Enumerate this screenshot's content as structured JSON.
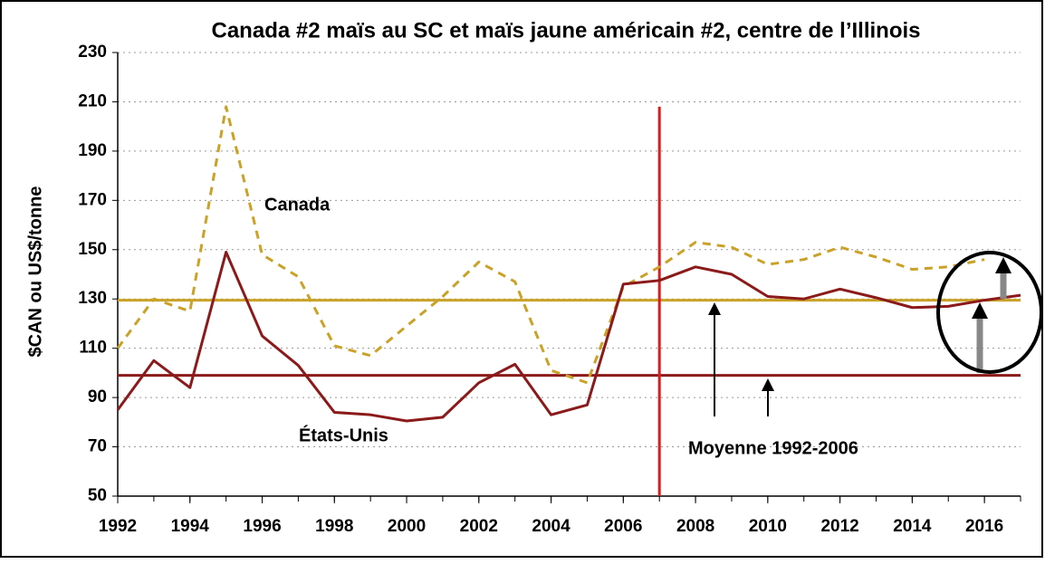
{
  "chart_data": {
    "type": "line",
    "title": "Canada #2 maïs au SC et maïs jaune américain #2, centre de l’Illinois",
    "y_label": "$CAN ou US$/tonne",
    "x": [
      1992,
      1993,
      1994,
      1995,
      1996,
      1997,
      1998,
      1999,
      2000,
      2001,
      2002,
      2003,
      2004,
      2005,
      2006,
      2007,
      2008,
      2009,
      2010,
      2011,
      2012,
      2013,
      2014,
      2015,
      2016,
      2017
    ],
    "series": [
      {
        "name": "Canada",
        "color": "#c9a227",
        "dashed": true,
        "values": [
          110,
          130,
          125,
          208,
          148,
          139,
          111,
          107,
          119,
          131,
          145,
          137,
          101,
          96,
          135,
          143,
          153,
          151,
          144,
          146,
          151,
          147,
          142,
          143,
          146,
          null
        ]
      },
      {
        "name": "États-Unis",
        "color": "#8b1a1a",
        "dashed": false,
        "values": [
          85,
          105,
          94,
          149,
          115,
          103,
          84,
          83,
          80.5,
          82,
          96,
          103.5,
          83,
          87,
          136,
          137.5,
          143,
          140,
          131,
          130,
          134,
          130.5,
          126.5,
          127,
          129.5,
          131.5
        ]
      }
    ],
    "reference_lines": [
      {
        "value": 129.5,
        "color": "#c9a227"
      },
      {
        "value": 99,
        "color": "#8b1a1a"
      }
    ],
    "vertical_line": {
      "x": 2007,
      "top": 208,
      "color": "#d42020"
    },
    "annotations": [
      "Canada",
      "États-Unis",
      "Moyenne 1992-2006"
    ],
    "xlim": [
      1992,
      2017
    ],
    "xticks": [
      1992,
      1994,
      1996,
      1998,
      2000,
      2002,
      2004,
      2006,
      2008,
      2010,
      2012,
      2014,
      2016
    ],
    "ylim": [
      50,
      230
    ],
    "yticks": [
      50,
      70,
      90,
      110,
      130,
      150,
      170,
      190,
      210,
      230
    ],
    "grid": true
  }
}
